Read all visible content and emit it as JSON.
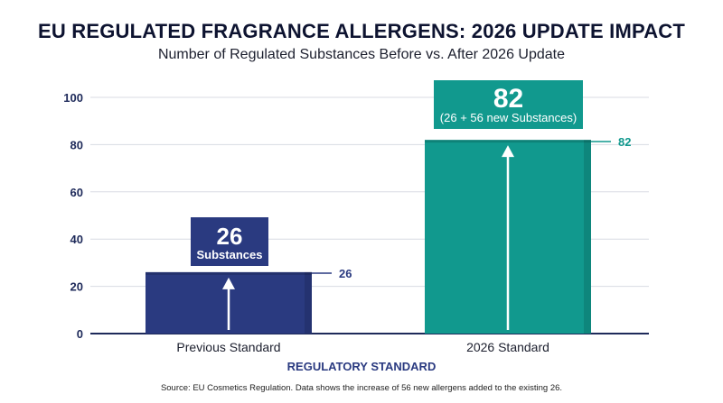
{
  "chart_data": {
    "type": "bar",
    "title": "EU REGULATED FRAGRANCE ALLERGENS: 2026 UPDATE IMPACT",
    "subtitle": "Number of Regulated Substances Before vs. After 2026 Update",
    "categories": [
      "Previous Standard",
      "2026 Standard"
    ],
    "values": [
      26,
      82
    ],
    "value_labels": [
      "26",
      "82"
    ],
    "callouts": [
      {
        "big": "26",
        "small": "Substances"
      },
      {
        "big": "82",
        "small": "(26 + 56 new Substances)"
      }
    ],
    "colors": [
      "#2a3a80",
      "#11998e"
    ],
    "xlabel": "REGULATORY STANDARD",
    "ylabel": "",
    "ylim": [
      0,
      100
    ],
    "yticks": [
      0,
      20,
      40,
      60,
      80,
      100
    ],
    "grid": true
  },
  "source": "Source: EU Cosmetics Regulation. Data shows the increase of 56 new allergens added to the existing 26."
}
